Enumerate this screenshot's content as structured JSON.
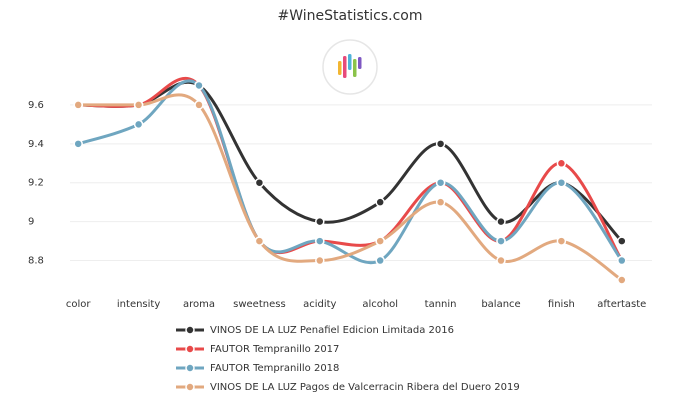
{
  "chart_data": {
    "type": "line",
    "title": "#WineStatistics.com",
    "categories": [
      "color",
      "intensity",
      "aroma",
      "sweetness",
      "acidity",
      "alcohol",
      "tannin",
      "balance",
      "finish",
      "aftertaste"
    ],
    "series": [
      {
        "name": "VINOS DE LA LUZ Penafiel Edicion Limitada 2016",
        "color": "#333333",
        "values": [
          9.6,
          9.6,
          9.7,
          9.2,
          9.0,
          9.1,
          9.4,
          9.0,
          9.2,
          8.9
        ]
      },
      {
        "name": "FAUTOR Tempranillo 2017",
        "color": "#e84a4a",
        "values": [
          9.6,
          9.6,
          9.7,
          8.9,
          8.9,
          8.9,
          9.2,
          8.9,
          9.3,
          8.8
        ]
      },
      {
        "name": "FAUTOR Tempranillo 2018",
        "color": "#6fa6c0",
        "values": [
          9.4,
          9.5,
          9.7,
          8.9,
          8.9,
          8.8,
          9.2,
          8.9,
          9.2,
          8.8
        ]
      },
      {
        "name": "VINOS DE LA LUZ Pagos de Valcerracin Ribera del Duero 2019",
        "color": "#e2a97f",
        "values": [
          9.6,
          9.6,
          9.6,
          8.9,
          8.8,
          8.9,
          9.1,
          8.8,
          8.9,
          8.7
        ]
      }
    ],
    "ylim": [
      8.7,
      9.8
    ],
    "yticks": [
      8.8,
      9,
      9.2,
      9.4,
      9.6
    ],
    "grid": true,
    "legend": "bottom"
  }
}
